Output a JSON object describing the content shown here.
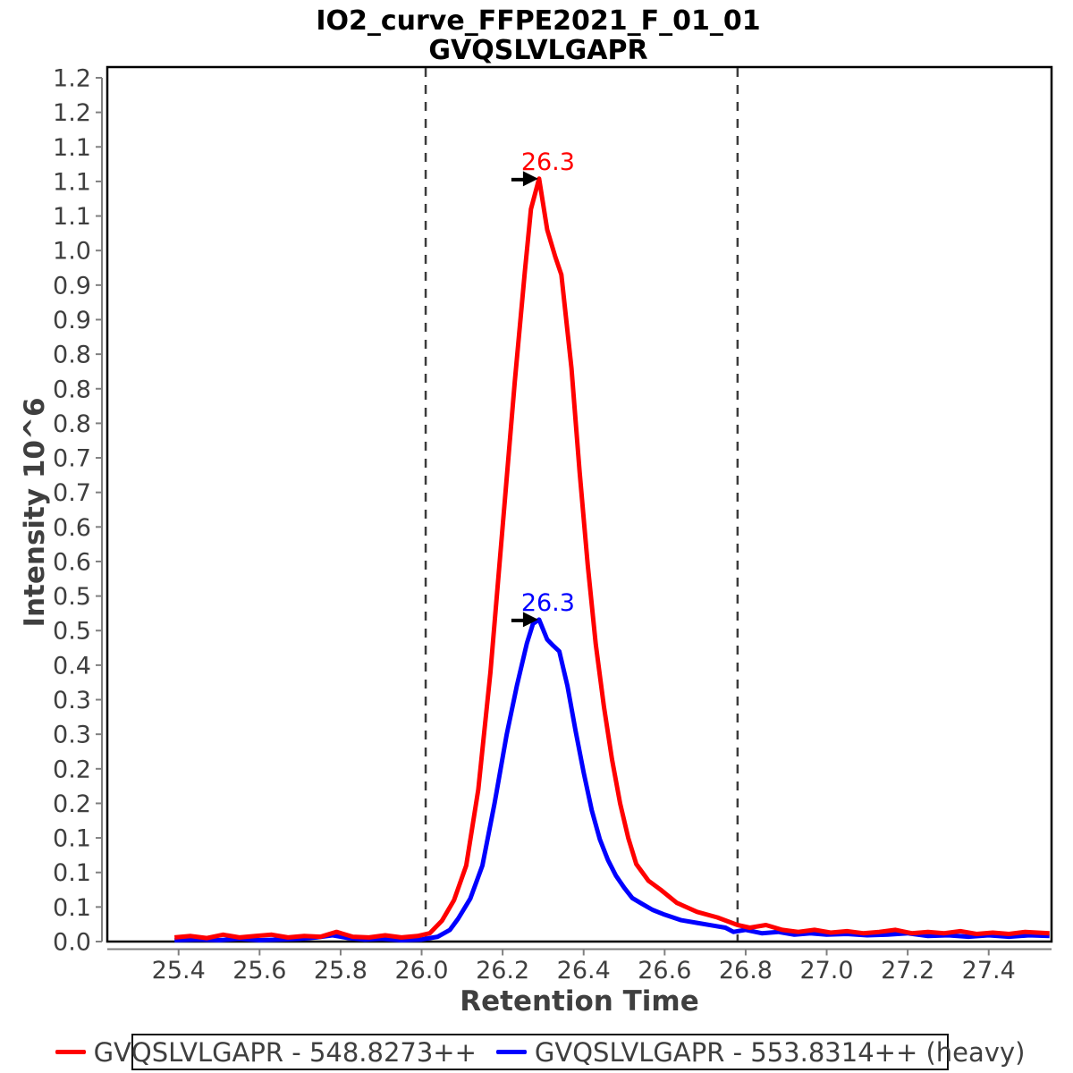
{
  "title": {
    "line1": "IO2_curve_FFPE2021_F_01_01",
    "line2": "GVQSLVLGAPR"
  },
  "axes": {
    "x_label": "Retention Time",
    "y_label": "Intensity 10^6",
    "x_tick_values": [
      25.4,
      25.6,
      25.8,
      26.0,
      26.2,
      26.4,
      26.6,
      26.8,
      27.0,
      27.2,
      27.4
    ],
    "x_tick_labels": [
      "25.4",
      "25.6",
      "25.8",
      "26.0",
      "26.2",
      "26.4",
      "26.6",
      "26.8",
      "27.0",
      "27.2",
      "27.4"
    ],
    "y_tick_labels_top_down": [
      "1.2",
      "1.2",
      "1.1",
      "1.1",
      "1.1",
      "1.0",
      "0.9",
      "0.9",
      "0.8",
      "0.8",
      "0.8",
      "0.7",
      "0.7",
      "0.6",
      "0.6",
      "0.5",
      "0.5",
      "0.4",
      "0.3",
      "0.3",
      "0.2",
      "0.2",
      "0.1",
      "0.1",
      "0.1",
      "0.0"
    ]
  },
  "legend": {
    "entries": [
      {
        "label": "GVQSLVLGAPR - 548.8273++",
        "color": "#ff0000"
      },
      {
        "label": "GVQSLVLGAPR - 553.8314++ (heavy)",
        "color": "#0000ff"
      }
    ]
  },
  "colors": {
    "light_series": "#ff0000",
    "heavy_series": "#0000ff",
    "frame": "#000000",
    "tick_rail": "#808080",
    "tick_text": "#3f3f3f",
    "boundary_line": "#3c3c3c",
    "arrow": "#000000"
  },
  "chart_data": {
    "type": "line",
    "title": "IO2_curve_FFPE2021_F_01_01",
    "subtitle": "GVQSLVLGAPR",
    "xlabel": "Retention Time",
    "ylabel": "Intensity 10^6",
    "xlim": [
      25.224,
      27.55
    ],
    "ylim": [
      0,
      1.25
    ],
    "grid": false,
    "legend_position": "bottom",
    "integration_boundaries": [
      26.01,
      26.78
    ],
    "peak_annotations": [
      {
        "text": "26.3",
        "series": "GVQSLVLGAPR - 548.8273++",
        "t": 26.29,
        "v": 1.104,
        "color": "#ff0000"
      },
      {
        "text": "26.3",
        "series": "GVQSLVLGAPR - 553.8314++ (heavy)",
        "t": 26.29,
        "v": 0.466,
        "color": "#0000ff"
      }
    ],
    "series": [
      {
        "name": "GVQSLVLGAPR - 548.8273++",
        "color": "#ff0000",
        "points": [
          [
            25.39,
            0.006
          ],
          [
            25.43,
            0.008
          ],
          [
            25.47,
            0.005
          ],
          [
            25.51,
            0.01
          ],
          [
            25.55,
            0.006
          ],
          [
            25.59,
            0.008
          ],
          [
            25.63,
            0.01
          ],
          [
            25.67,
            0.006
          ],
          [
            25.71,
            0.008
          ],
          [
            25.75,
            0.007
          ],
          [
            25.79,
            0.014
          ],
          [
            25.83,
            0.007
          ],
          [
            25.87,
            0.006
          ],
          [
            25.91,
            0.009
          ],
          [
            25.95,
            0.006
          ],
          [
            25.99,
            0.008
          ],
          [
            26.02,
            0.012
          ],
          [
            26.05,
            0.03
          ],
          [
            26.08,
            0.06
          ],
          [
            26.11,
            0.11
          ],
          [
            26.14,
            0.22
          ],
          [
            26.17,
            0.39
          ],
          [
            26.2,
            0.6
          ],
          [
            26.23,
            0.81
          ],
          [
            26.255,
            0.97
          ],
          [
            26.27,
            1.06
          ],
          [
            26.29,
            1.104
          ],
          [
            26.31,
            1.03
          ],
          [
            26.33,
            0.991
          ],
          [
            26.345,
            0.965
          ],
          [
            26.37,
            0.83
          ],
          [
            26.39,
            0.68
          ],
          [
            26.41,
            0.545
          ],
          [
            26.43,
            0.43
          ],
          [
            26.45,
            0.34
          ],
          [
            26.47,
            0.264
          ],
          [
            26.49,
            0.2
          ],
          [
            26.51,
            0.15
          ],
          [
            26.53,
            0.112
          ],
          [
            26.56,
            0.088
          ],
          [
            26.59,
            0.075
          ],
          [
            26.63,
            0.056
          ],
          [
            26.68,
            0.043
          ],
          [
            26.73,
            0.035
          ],
          [
            26.78,
            0.024
          ],
          [
            26.81,
            0.02
          ],
          [
            26.85,
            0.024
          ],
          [
            26.89,
            0.017
          ],
          [
            26.93,
            0.014
          ],
          [
            26.97,
            0.017
          ],
          [
            27.01,
            0.013
          ],
          [
            27.05,
            0.015
          ],
          [
            27.09,
            0.012
          ],
          [
            27.13,
            0.014
          ],
          [
            27.17,
            0.017
          ],
          [
            27.21,
            0.012
          ],
          [
            27.25,
            0.014
          ],
          [
            27.29,
            0.012
          ],
          [
            27.33,
            0.015
          ],
          [
            27.37,
            0.011
          ],
          [
            27.41,
            0.013
          ],
          [
            27.45,
            0.011
          ],
          [
            27.49,
            0.014
          ],
          [
            27.55,
            0.012
          ]
        ]
      },
      {
        "name": "GVQSLVLGAPR - 553.8314++ (heavy)",
        "color": "#0000ff",
        "points": [
          [
            25.39,
            0.002
          ],
          [
            25.45,
            0.003
          ],
          [
            25.5,
            0.002
          ],
          [
            25.55,
            0.004
          ],
          [
            25.6,
            0.002
          ],
          [
            25.65,
            0.003
          ],
          [
            25.7,
            0.004
          ],
          [
            25.74,
            0.006
          ],
          [
            25.78,
            0.009
          ],
          [
            25.82,
            0.005
          ],
          [
            25.86,
            0.003
          ],
          [
            25.9,
            0.004
          ],
          [
            25.95,
            0.002
          ],
          [
            26.0,
            0.003
          ],
          [
            26.04,
            0.007
          ],
          [
            26.07,
            0.017
          ],
          [
            26.09,
            0.033
          ],
          [
            26.12,
            0.062
          ],
          [
            26.15,
            0.11
          ],
          [
            26.18,
            0.2
          ],
          [
            26.21,
            0.3
          ],
          [
            26.235,
            0.37
          ],
          [
            26.26,
            0.432
          ],
          [
            26.275,
            0.46
          ],
          [
            26.29,
            0.466
          ],
          [
            26.31,
            0.437
          ],
          [
            26.325,
            0.428
          ],
          [
            26.34,
            0.42
          ],
          [
            26.36,
            0.37
          ],
          [
            26.38,
            0.305
          ],
          [
            26.4,
            0.245
          ],
          [
            26.42,
            0.19
          ],
          [
            26.44,
            0.148
          ],
          [
            26.46,
            0.118
          ],
          [
            26.48,
            0.095
          ],
          [
            26.5,
            0.078
          ],
          [
            26.52,
            0.063
          ],
          [
            26.54,
            0.056
          ],
          [
            26.57,
            0.046
          ],
          [
            26.6,
            0.039
          ],
          [
            26.64,
            0.031
          ],
          [
            26.68,
            0.027
          ],
          [
            26.72,
            0.023
          ],
          [
            26.75,
            0.02
          ],
          [
            26.77,
            0.014
          ],
          [
            26.8,
            0.017
          ],
          [
            26.84,
            0.012
          ],
          [
            26.88,
            0.014
          ],
          [
            26.92,
            0.01
          ],
          [
            26.96,
            0.012
          ],
          [
            27.0,
            0.01
          ],
          [
            27.05,
            0.011
          ],
          [
            27.1,
            0.009
          ],
          [
            27.15,
            0.01
          ],
          [
            27.2,
            0.012
          ],
          [
            27.25,
            0.008
          ],
          [
            27.3,
            0.009
          ],
          [
            27.35,
            0.007
          ],
          [
            27.4,
            0.009
          ],
          [
            27.45,
            0.007
          ],
          [
            27.5,
            0.009
          ],
          [
            27.55,
            0.008
          ]
        ]
      }
    ]
  }
}
